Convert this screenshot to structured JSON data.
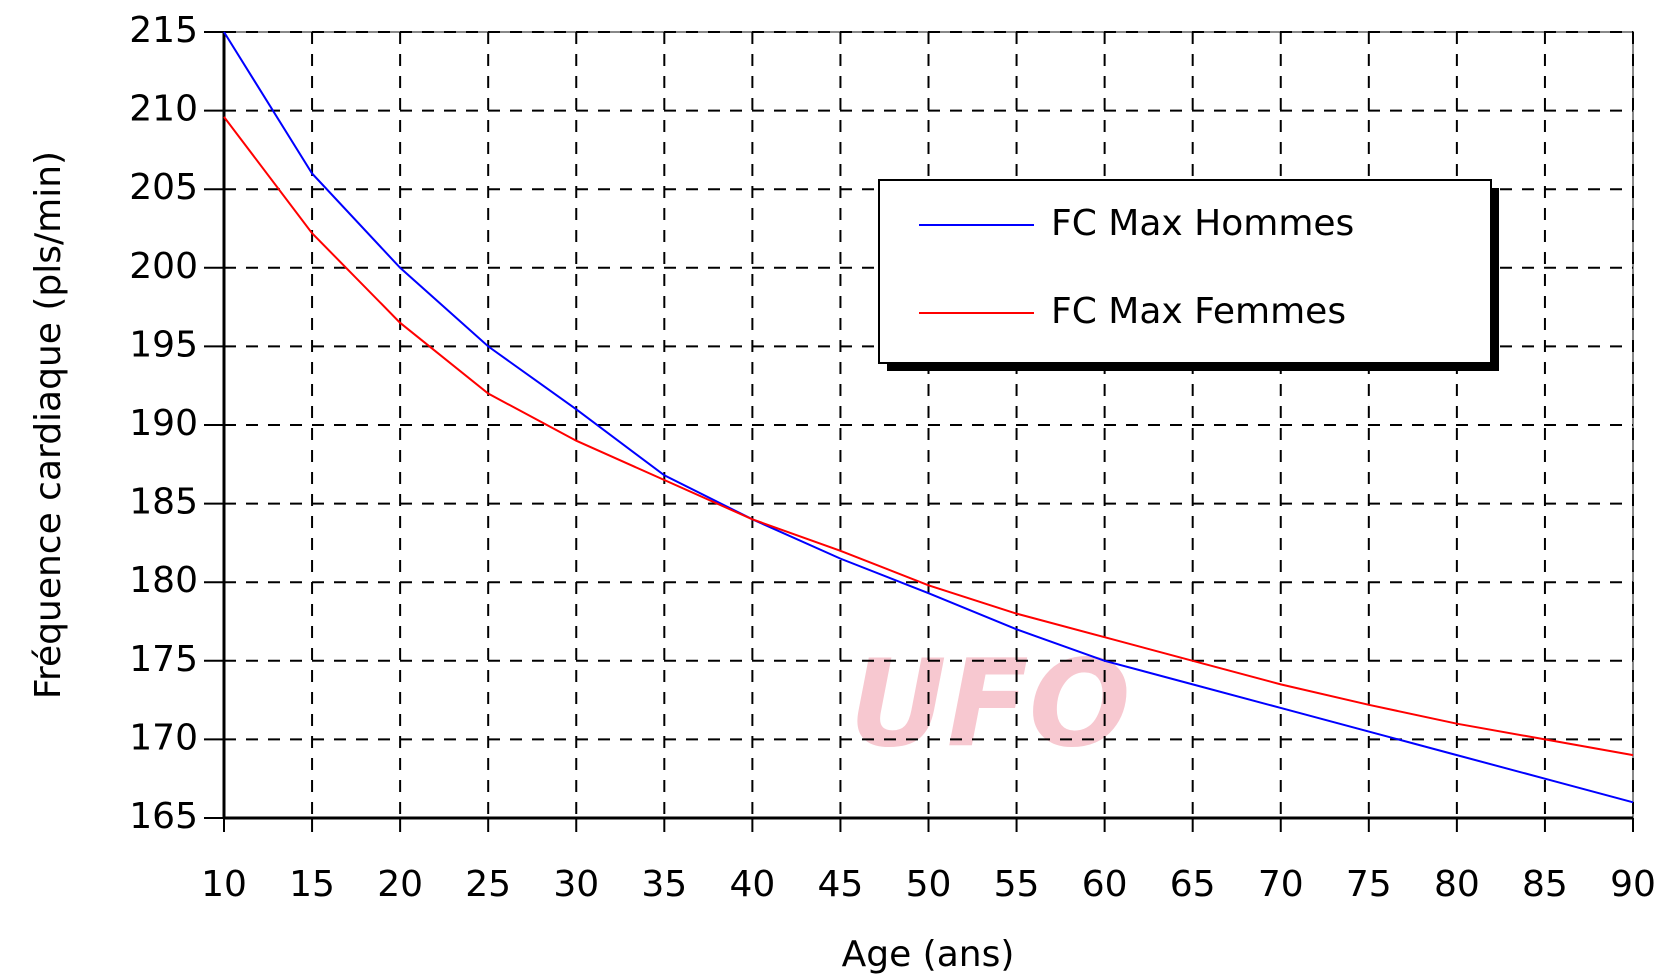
{
  "chart_data": {
    "type": "line",
    "x_label": "Age (ans)",
    "y_label": "Fréquence cardiaque (pls/min)",
    "annotation": "UFO",
    "x": [
      10,
      15,
      20,
      25,
      30,
      35,
      40,
      45,
      50,
      55,
      60,
      65,
      70,
      75,
      80,
      85,
      90
    ],
    "series": [
      {
        "name": "FC Max Hommes",
        "color": "#0000ff",
        "values": [
          215,
          206,
          200,
          195,
          191,
          186.8,
          184,
          181.5,
          179.3,
          177,
          175,
          173.5,
          172,
          170.5,
          169,
          167.5,
          166
        ]
      },
      {
        "name": "FC Max Femmes",
        "color": "#ff0000",
        "values": [
          209.6,
          202.2,
          196.5,
          192,
          189,
          186.5,
          184,
          182,
          179.8,
          178,
          176.5,
          175,
          173.5,
          172.2,
          171,
          170,
          169
        ]
      }
    ],
    "xlim": [
      10,
      90
    ],
    "ylim": [
      165,
      215
    ],
    "xticks": [
      10,
      15,
      20,
      25,
      30,
      35,
      40,
      45,
      50,
      55,
      60,
      65,
      70,
      75,
      80,
      85,
      90
    ],
    "yticks": [
      165,
      170,
      175,
      180,
      185,
      190,
      195,
      200,
      205,
      210,
      215
    ],
    "grid": true,
    "legend": "upper right"
  }
}
